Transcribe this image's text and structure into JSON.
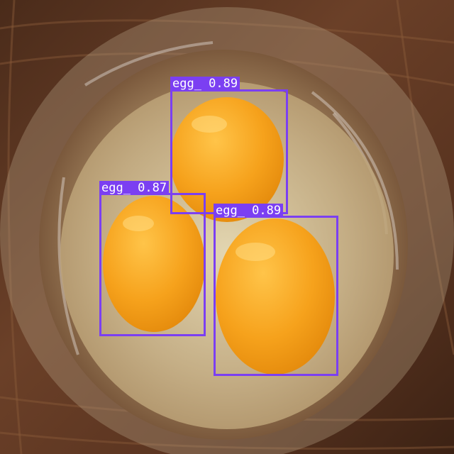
{
  "detections": [
    {
      "label": "egg_",
      "score": "0.89",
      "text": "egg_ 0.89"
    },
    {
      "label": "egg_",
      "score": "0.87",
      "text": "egg_ 0.87"
    },
    {
      "label": "egg_",
      "score": "0.89",
      "text": "egg_ 0.89"
    }
  ],
  "colors": {
    "box": "#7b3ff2",
    "label_text": "#ffffff",
    "wood": "#5a3622",
    "yolk": "#f6a21c"
  }
}
